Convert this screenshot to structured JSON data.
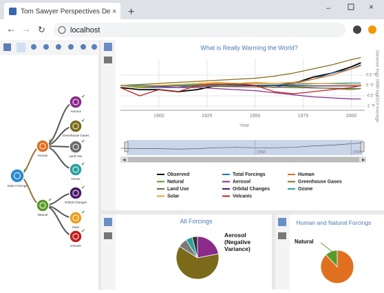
{
  "browser": {
    "tab_title": "Tom Sawyer Perspectives Demo",
    "url": "localhost"
  },
  "tree": {
    "nodes": [
      {
        "label": "Solar Forcings"
      },
      {
        "label": "Human"
      },
      {
        "label": "Natural"
      },
      {
        "label": "Aerosol"
      },
      {
        "label": "Greenhouse Gases"
      },
      {
        "label": "Land Use"
      },
      {
        "label": "Ozone"
      },
      {
        "label": "Orbital Changes"
      },
      {
        "label": "Solar"
      },
      {
        "label": "Volcanic"
      }
    ]
  },
  "chart_data": [
    {
      "type": "line",
      "title": "What is Really Warming the World?",
      "x_label": "Year",
      "y_label": "Variance from 1880 to 1910 Average",
      "x": [
        1880,
        1890,
        1900,
        1910,
        1920,
        1930,
        1940,
        1950,
        1960,
        1970,
        1980,
        1990,
        2000,
        2005
      ],
      "xlim": [
        1880,
        2007
      ],
      "xticks": [
        1900,
        1925,
        1950,
        1975,
        2000
      ],
      "ylim": [
        -1.2,
        1.3
      ],
      "yticks": [
        {
          "value": 0.5,
          "label": "0.5 °F"
        },
        {
          "value": 0,
          "label": "0 °F"
        },
        {
          "value": -0.5,
          "label": "-0.5 °F"
        },
        {
          "value": -1,
          "label": "-1 °F"
        }
      ],
      "navigator_xticks": [
        1950,
        2000
      ],
      "series": [
        {
          "name": "Observed",
          "color": "#000000",
          "values": [
            -0.1,
            -0.2,
            -0.2,
            -0.3,
            -0.2,
            0.0,
            0.1,
            0.0,
            0.0,
            0.1,
            0.4,
            0.6,
            0.9,
            1.1
          ]
        },
        {
          "name": "Total Forcings",
          "color": "#1f6fbf",
          "values": [
            0.0,
            -0.1,
            -0.1,
            -0.1,
            0.0,
            0.1,
            0.1,
            0.0,
            -0.1,
            0.1,
            0.3,
            0.6,
            0.8,
            1.0
          ]
        },
        {
          "name": "Human",
          "color": "#e07020",
          "values": [
            0.0,
            0.0,
            0.0,
            0.0,
            0.05,
            0.1,
            0.1,
            0.1,
            0.1,
            0.15,
            0.3,
            0.5,
            0.8,
            0.95
          ]
        },
        {
          "name": "Natural",
          "color": "#5a9a2a",
          "values": [
            0.0,
            -0.1,
            -0.05,
            0.0,
            0.05,
            0.0,
            0.05,
            0.0,
            -0.1,
            -0.05,
            -0.1,
            -0.15,
            -0.2,
            -0.15
          ]
        },
        {
          "name": "Aerosol",
          "color": "#8a2a8a",
          "values": [
            0.0,
            -0.05,
            -0.05,
            -0.1,
            -0.1,
            -0.15,
            -0.2,
            -0.25,
            -0.35,
            -0.45,
            -0.55,
            -0.6,
            -0.65,
            -0.65
          ]
        },
        {
          "name": "Greenhouse Gases",
          "color": "#8a6a1a",
          "values": [
            0.0,
            0.05,
            0.1,
            0.15,
            0.2,
            0.25,
            0.3,
            0.35,
            0.45,
            0.6,
            0.8,
            1.0,
            1.25,
            1.35
          ]
        },
        {
          "name": "Land Use",
          "color": "#7a6040",
          "values": [
            0.0,
            0.0,
            -0.02,
            -0.03,
            -0.05,
            -0.05,
            -0.06,
            -0.07,
            -0.08,
            -0.1,
            -0.12,
            -0.13,
            -0.15,
            -0.15
          ]
        },
        {
          "name": "Orbital Changes",
          "color": "#4a1a6a",
          "values": [
            0.0,
            0.0,
            0.0,
            0.0,
            0.0,
            0.0,
            -0.01,
            -0.01,
            -0.01,
            -0.01,
            -0.02,
            -0.02,
            -0.02,
            -0.02
          ]
        },
        {
          "name": "Ozone",
          "color": "#2aa0a0",
          "values": [
            0.0,
            0.0,
            0.0,
            0.0,
            0.0,
            0.0,
            0.01,
            0.02,
            0.03,
            0.05,
            0.08,
            0.1,
            0.12,
            0.12
          ]
        },
        {
          "name": "Solar",
          "color": "#e8a020",
          "values": [
            0.0,
            -0.05,
            0.0,
            0.05,
            0.1,
            0.15,
            0.1,
            0.15,
            0.1,
            0.12,
            0.1,
            0.08,
            0.05,
            0.05
          ]
        },
        {
          "name": "Volcanic",
          "color": "#c02020",
          "values": [
            -0.1,
            -0.5,
            -0.2,
            -0.3,
            0.0,
            0.05,
            0.05,
            0.0,
            -0.3,
            -0.4,
            -0.3,
            -0.2,
            -0.1,
            0.0
          ]
        }
      ]
    },
    {
      "type": "pie",
      "title": "All Forcings",
      "annotation": "Aerosol (Negative Variance)",
      "values": [
        22,
        62,
        7,
        5,
        4
      ],
      "colors": [
        "#8a2a8a",
        "#7a6a1a",
        "#7a7a7a",
        "#2aa0a0",
        "#333333"
      ]
    },
    {
      "type": "pie",
      "title": "Human and Natural Forcings",
      "annotation": "Natural",
      "values": [
        88,
        12
      ],
      "colors": [
        "#e07020",
        "#5a9a2a"
      ]
    }
  ]
}
